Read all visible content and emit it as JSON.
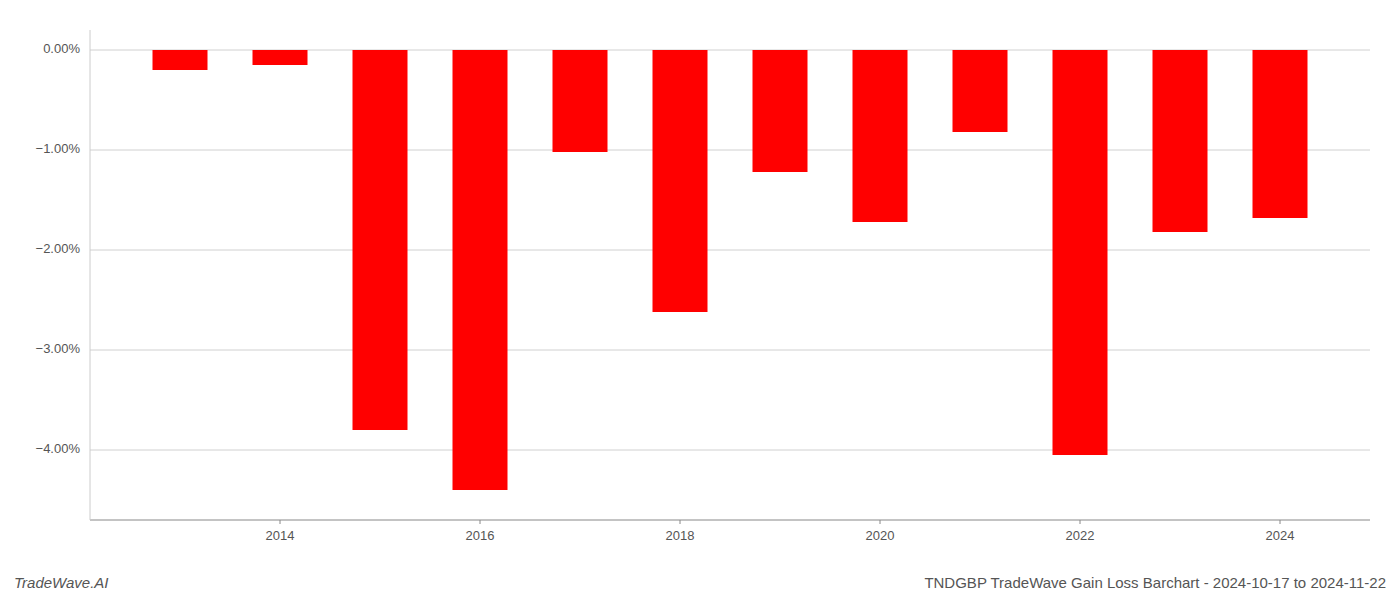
{
  "chart_data": {
    "type": "bar",
    "title": "TNDGBP TradeWave Gain Loss Barchart - 2024-10-17 to 2024-11-22",
    "annotations": [
      "TradeWave.AI"
    ],
    "x": [
      2013,
      2014,
      2015,
      2016,
      2017,
      2018,
      2019,
      2020,
      2021,
      2022,
      2023,
      2024
    ],
    "values": [
      -0.2,
      -0.15,
      -3.8,
      -4.4,
      -1.02,
      -2.62,
      -1.22,
      -1.72,
      -0.82,
      -4.05,
      -1.82,
      -1.68
    ],
    "color": "#ff0000",
    "xlim": [
      2012.1,
      2024.9
    ],
    "xticks": [
      2014,
      2016,
      2018,
      2020,
      2022,
      2024
    ],
    "ylim": [
      -4.7,
      0.2
    ],
    "yticks": [
      {
        "value": 0.0,
        "label": "0.00%"
      },
      {
        "value": -1.0,
        "label": "−1.00%"
      },
      {
        "value": -2.0,
        "label": "−2.00%"
      },
      {
        "value": -3.0,
        "label": "−3.00%"
      },
      {
        "value": -4.0,
        "label": "−4.00%"
      }
    ],
    "grid": true
  }
}
